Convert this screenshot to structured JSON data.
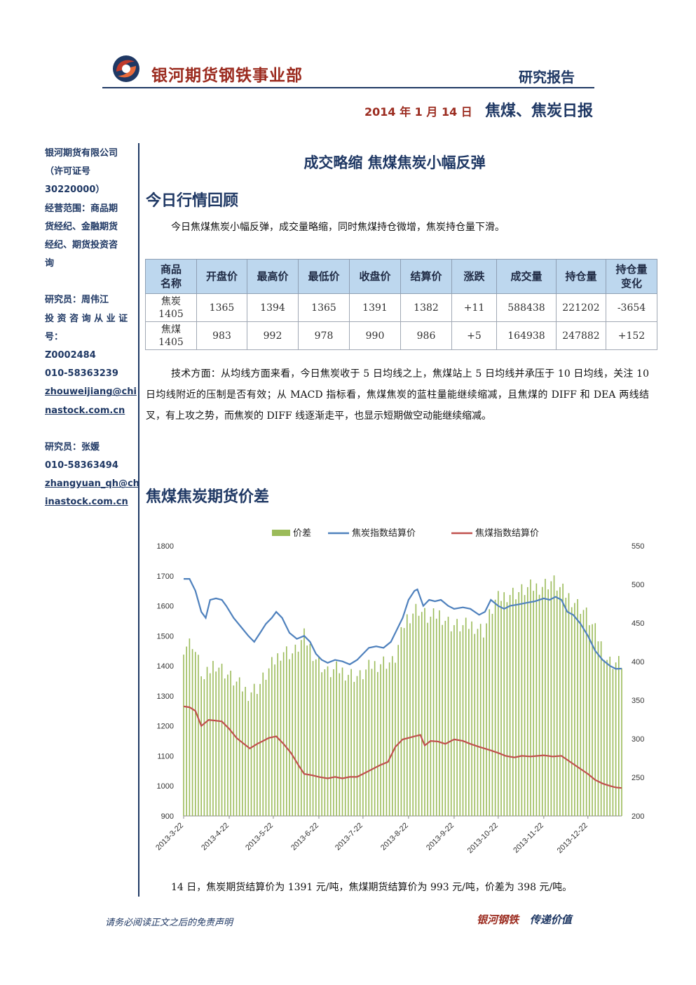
{
  "header": {
    "company": "银河期货钢铁事业部",
    "report_type": "研究报告",
    "date": "2014 年 1 月 14 日",
    "report_name": "焦煤、焦炭日报"
  },
  "sidebar": {
    "lines": [
      "银河期货有限公司",
      "（许可证号",
      "30220000）",
      "经营范围：商品期",
      "货经纪、金融期货",
      "经纪、期货投资咨",
      "询"
    ],
    "researcher1_lines": [
      "研究员：周伟江",
      "投 资 咨 询 从 业 证",
      "号："
    ],
    "researcher1_id": "Z0002484",
    "researcher1_phone": "010-58363239",
    "researcher1_email_lines": [
      "zhouweijiang@chi",
      "nastock.com.cn"
    ],
    "researcher2_name": "研究员：张媛",
    "researcher2_phone": "010-58363494",
    "researcher2_email_lines": [
      "zhangyuan_qh@ch",
      "inastock.com.cn"
    ]
  },
  "headline": "成交略缩  焦煤焦炭小幅反弹",
  "section1_title": "今日行情回顾",
  "intro": "今日焦煤焦炭小幅反弹，成交量略缩，同时焦煤持仓微增，焦炭持仓量下滑。",
  "table": {
    "headers": [
      [
        "商品",
        "名称"
      ],
      [
        "开盘价"
      ],
      [
        "最高价"
      ],
      [
        "最低价"
      ],
      [
        "收盘价"
      ],
      [
        "结算价"
      ],
      [
        "涨跌"
      ],
      [
        "成交量"
      ],
      [
        "持仓量"
      ],
      [
        "持仓量",
        "变化"
      ]
    ],
    "rows": [
      [
        [
          "焦炭",
          "1405"
        ],
        "1365",
        "1394",
        "1365",
        "1391",
        "1382",
        "+11",
        "588438",
        "221202",
        "-3654"
      ],
      [
        [
          "焦煤",
          "1405"
        ],
        "983",
        "992",
        "978",
        "990",
        "986",
        "+5",
        "164938",
        "247882",
        "+152"
      ]
    ]
  },
  "tech": "技术方面：从均线方面来看，今日焦炭收于 5 日均线之上，焦煤站上 5 日均线并承压于 10 日均线，关注 10 日均线附近的压制是否有效；从 MACD 指标看，焦煤焦炭的蓝柱量能继续缩减，且焦煤的 DIFF 和 DEA 两线结叉，有上攻之势，而焦炭的 DIFF 线逐渐走平，也显示短期做空动能继续缩减。",
  "section2_title": "焦煤焦炭期货价差",
  "chart_data": {
    "type": "line",
    "title": "",
    "legend": [
      "价差",
      "焦炭指数结算价",
      "焦煤指数结算价"
    ],
    "legend_position": "top",
    "colors": {
      "spread": "#9bbb59",
      "coke": "#4f81bd",
      "coal": "#c0504d"
    },
    "y_left": {
      "min": 900,
      "max": 1800,
      "ticks": [
        900,
        1000,
        1100,
        1200,
        1300,
        1400,
        1500,
        1600,
        1700,
        1800
      ]
    },
    "y_right": {
      "min": 200,
      "max": 550,
      "ticks": [
        200,
        250,
        300,
        350,
        400,
        450,
        500,
        550
      ]
    },
    "x_ticks": [
      "2013-3-22",
      "2013-4-22",
      "2013-5-22",
      "2013-6-22",
      "2013-7-22",
      "2013-8-22",
      "2013-9-22",
      "2013-10-22",
      "2013-11-22",
      "2013-12-22"
    ],
    "x_range": [
      "2013-3-22",
      "2014-1-14"
    ],
    "series": [
      {
        "name": "焦炭指数结算价",
        "axis": "left",
        "kind": "line",
        "points": [
          [
            "2013-3-22",
            1690
          ],
          [
            "2013-3-26",
            1690
          ],
          [
            "2013-3-30",
            1650
          ],
          [
            "2013-4-3",
            1580
          ],
          [
            "2013-4-6",
            1560
          ],
          [
            "2013-4-9",
            1620
          ],
          [
            "2013-4-13",
            1625
          ],
          [
            "2013-4-17",
            1620
          ],
          [
            "2013-4-20",
            1600
          ],
          [
            "2013-4-25",
            1560
          ],
          [
            "2013-4-30",
            1530
          ],
          [
            "2013-5-5",
            1500
          ],
          [
            "2013-5-9",
            1480
          ],
          [
            "2013-5-13",
            1510
          ],
          [
            "2013-5-17",
            1540
          ],
          [
            "2013-5-21",
            1560
          ],
          [
            "2013-5-24",
            1580
          ],
          [
            "2013-5-28",
            1560
          ],
          [
            "2013-6-2",
            1510
          ],
          [
            "2013-6-7",
            1490
          ],
          [
            "2013-6-12",
            1500
          ],
          [
            "2013-6-16",
            1480
          ],
          [
            "2013-6-20",
            1440
          ],
          [
            "2013-6-24",
            1420
          ],
          [
            "2013-6-28",
            1410
          ],
          [
            "2013-7-3",
            1420
          ],
          [
            "2013-7-8",
            1415
          ],
          [
            "2013-7-13",
            1405
          ],
          [
            "2013-7-18",
            1420
          ],
          [
            "2013-7-22",
            1440
          ],
          [
            "2013-7-26",
            1460
          ],
          [
            "2013-7-31",
            1465
          ],
          [
            "2013-8-5",
            1460
          ],
          [
            "2013-8-10",
            1480
          ],
          [
            "2013-8-14",
            1520
          ],
          [
            "2013-8-18",
            1560
          ],
          [
            "2013-8-22",
            1620
          ],
          [
            "2013-8-26",
            1650
          ],
          [
            "2013-8-28",
            1655
          ],
          [
            "2013-9-1",
            1600
          ],
          [
            "2013-9-5",
            1620
          ],
          [
            "2013-9-9",
            1615
          ],
          [
            "2013-9-13",
            1620
          ],
          [
            "2013-9-18",
            1600
          ],
          [
            "2013-9-22",
            1590
          ],
          [
            "2013-9-28",
            1595
          ],
          [
            "2013-10-3",
            1590
          ],
          [
            "2013-10-9",
            1570
          ],
          [
            "2013-10-13",
            1580
          ],
          [
            "2013-10-17",
            1620
          ],
          [
            "2013-10-22",
            1600
          ],
          [
            "2013-10-26",
            1590
          ],
          [
            "2013-10-30",
            1600
          ],
          [
            "2013-11-5",
            1605
          ],
          [
            "2013-11-10",
            1610
          ],
          [
            "2013-11-16",
            1615
          ],
          [
            "2013-11-22",
            1625
          ],
          [
            "2013-11-26",
            1620
          ],
          [
            "2013-11-30",
            1630
          ],
          [
            "2013-12-4",
            1620
          ],
          [
            "2013-12-8",
            1580
          ],
          [
            "2013-12-12",
            1570
          ],
          [
            "2013-12-17",
            1540
          ],
          [
            "2013-12-22",
            1500
          ],
          [
            "2013-12-27",
            1450
          ],
          [
            "2014-1-1",
            1420
          ],
          [
            "2014-1-6",
            1400
          ],
          [
            "2014-1-10",
            1390
          ],
          [
            "2014-1-14",
            1391
          ]
        ]
      },
      {
        "name": "焦煤指数结算价",
        "axis": "left",
        "kind": "line",
        "points": [
          [
            "2013-3-22",
            1265
          ],
          [
            "2013-3-26",
            1262
          ],
          [
            "2013-3-30",
            1250
          ],
          [
            "2013-4-3",
            1200
          ],
          [
            "2013-4-8",
            1220
          ],
          [
            "2013-4-12",
            1218
          ],
          [
            "2013-4-17",
            1215
          ],
          [
            "2013-4-22",
            1190
          ],
          [
            "2013-4-27",
            1160
          ],
          [
            "2013-5-2",
            1140
          ],
          [
            "2013-5-6",
            1125
          ],
          [
            "2013-5-11",
            1140
          ],
          [
            "2013-5-15",
            1150
          ],
          [
            "2013-5-19",
            1160
          ],
          [
            "2013-5-24",
            1165
          ],
          [
            "2013-5-29",
            1140
          ],
          [
            "2013-6-3",
            1110
          ],
          [
            "2013-6-8",
            1070
          ],
          [
            "2013-6-12",
            1040
          ],
          [
            "2013-6-18",
            1035
          ],
          [
            "2013-6-22",
            1030
          ],
          [
            "2013-6-28",
            1025
          ],
          [
            "2013-7-3",
            1030
          ],
          [
            "2013-7-8",
            1025
          ],
          [
            "2013-7-13",
            1030
          ],
          [
            "2013-7-18",
            1030
          ],
          [
            "2013-7-22",
            1040
          ],
          [
            "2013-7-28",
            1055
          ],
          [
            "2013-8-3",
            1070
          ],
          [
            "2013-8-8",
            1080
          ],
          [
            "2013-8-13",
            1130
          ],
          [
            "2013-8-18",
            1155
          ],
          [
            "2013-8-22",
            1160
          ],
          [
            "2013-8-26",
            1165
          ],
          [
            "2013-8-30",
            1170
          ],
          [
            "2013-9-2",
            1135
          ],
          [
            "2013-9-6",
            1150
          ],
          [
            "2013-9-11",
            1148
          ],
          [
            "2013-9-16",
            1140
          ],
          [
            "2013-9-22",
            1155
          ],
          [
            "2013-9-28",
            1150
          ],
          [
            "2013-10-3",
            1140
          ],
          [
            "2013-10-9",
            1130
          ],
          [
            "2013-10-16",
            1120
          ],
          [
            "2013-10-22",
            1110
          ],
          [
            "2013-10-27",
            1100
          ],
          [
            "2013-11-2",
            1095
          ],
          [
            "2013-11-7",
            1100
          ],
          [
            "2013-11-13",
            1098
          ],
          [
            "2013-11-18",
            1100
          ],
          [
            "2013-11-22",
            1102
          ],
          [
            "2013-11-28",
            1098
          ],
          [
            "2013-12-4",
            1100
          ],
          [
            "2013-12-10",
            1080
          ],
          [
            "2013-12-16",
            1060
          ],
          [
            "2013-12-22",
            1040
          ],
          [
            "2013-12-27",
            1020
          ],
          [
            "2014-1-1",
            1008
          ],
          [
            "2014-1-6",
            1000
          ],
          [
            "2014-1-10",
            995
          ],
          [
            "2014-1-14",
            993
          ]
        ]
      },
      {
        "name": "价差",
        "axis": "right",
        "kind": "bar",
        "points": [
          [
            "2013-3-22",
            420
          ],
          [
            "2013-3-28",
            425
          ],
          [
            "2013-4-5",
            375
          ],
          [
            "2013-4-12",
            400
          ],
          [
            "2013-4-20",
            385
          ],
          [
            "2013-4-28",
            370
          ],
          [
            "2013-5-5",
            360
          ],
          [
            "2013-5-12",
            368
          ],
          [
            "2013-5-20",
            392
          ],
          [
            "2013-5-28",
            415
          ],
          [
            "2013-6-5",
            410
          ],
          [
            "2013-6-12",
            432
          ],
          [
            "2013-6-20",
            405
          ],
          [
            "2013-6-28",
            385
          ],
          [
            "2013-7-5",
            390
          ],
          [
            "2013-7-12",
            385
          ],
          [
            "2013-7-20",
            380
          ],
          [
            "2013-7-28",
            395
          ],
          [
            "2013-8-5",
            400
          ],
          [
            "2013-8-12",
            398
          ],
          [
            "2013-8-20",
            455
          ],
          [
            "2013-8-28",
            470
          ],
          [
            "2013-9-5",
            455
          ],
          [
            "2013-9-12",
            462
          ],
          [
            "2013-9-20",
            448
          ],
          [
            "2013-9-28",
            445
          ],
          [
            "2013-10-5",
            448
          ],
          [
            "2013-10-12",
            440
          ],
          [
            "2013-10-20",
            478
          ],
          [
            "2013-10-28",
            488
          ],
          [
            "2013-11-5",
            490
          ],
          [
            "2013-11-12",
            495
          ],
          [
            "2013-11-20",
            498
          ],
          [
            "2013-11-28",
            505
          ],
          [
            "2013-12-5",
            490
          ],
          [
            "2013-12-12",
            480
          ],
          [
            "2013-12-20",
            465
          ],
          [
            "2013-12-28",
            435
          ],
          [
            "2014-1-5",
            400
          ],
          [
            "2014-1-14",
            398
          ]
        ]
      }
    ]
  },
  "summary": "14 日，焦炭期货结算价为 1391 元/吨，焦煤期货结算价为 993 元/吨，价差为 398 元/吨。",
  "footer": {
    "disclaimer": "请务必阅读正文之后的免责声明",
    "slogan_a": "银河钢铁",
    "slogan_b": "传递价值"
  }
}
